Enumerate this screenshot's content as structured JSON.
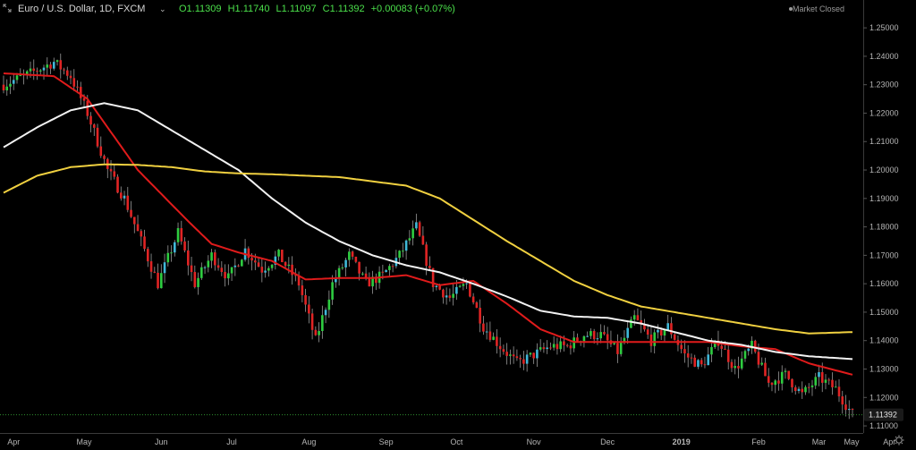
{
  "header": {
    "title": "Euro / U.S. Dollar, 1D, FXCM",
    "dropdown_icon": "chevron-down-icon",
    "ohlc": {
      "open": "O1.11309",
      "high": "H1.11740",
      "low": "L1.11097",
      "close": "C1.11392",
      "change": "+0.00083 (+0.07%)"
    },
    "market_status": "Market Closed"
  },
  "colors": {
    "background": "#000000",
    "candle_up": "#2ecc40",
    "candle_up_alt": "#3fb8d8",
    "candle_down": "#e02424",
    "ma_red": "#e01b1b",
    "ma_white": "#f2f2f2",
    "ma_yellow": "#f0d040",
    "price_label_bg": "#1a1a1a",
    "current_line": "#2f8f2f"
  },
  "chart_data": {
    "type": "line",
    "title": "Euro / U.S. Dollar, 1D, FXCM",
    "xlabel": "",
    "ylabel": "",
    "x": [
      "Apr",
      "May",
      "Jun",
      "Jul",
      "Aug",
      "Sep",
      "Oct",
      "Nov",
      "Dec",
      "2019",
      "Feb",
      "Mar",
      "Apr",
      "May"
    ],
    "y_ticks": [
      "1.25000",
      "1.24000",
      "1.23000",
      "1.22000",
      "1.21000",
      "1.20000",
      "1.19000",
      "1.18000",
      "1.17000",
      "1.16000",
      "1.15000",
      "1.14000",
      "1.13000",
      "1.12000",
      "1.11000"
    ],
    "ylim": [
      1.1075,
      1.2535
    ],
    "grid": false,
    "current_price": "1.11392",
    "ohlc_anchors": [
      [
        0,
        1.23
      ],
      [
        8,
        1.234
      ],
      [
        15,
        1.238
      ],
      [
        20,
        1.233
      ],
      [
        25,
        1.22
      ],
      [
        31,
        1.2
      ],
      [
        36,
        1.19
      ],
      [
        41,
        1.175
      ],
      [
        46,
        1.16
      ],
      [
        52,
        1.178
      ],
      [
        57,
        1.16
      ],
      [
        62,
        1.17
      ],
      [
        67,
        1.162
      ],
      [
        72,
        1.172
      ],
      [
        77,
        1.165
      ],
      [
        82,
        1.17
      ],
      [
        88,
        1.16
      ],
      [
        93,
        1.14
      ],
      [
        98,
        1.16
      ],
      [
        103,
        1.17
      ],
      [
        108,
        1.16
      ],
      [
        113,
        1.163
      ],
      [
        118,
        1.17
      ],
      [
        123,
        1.18
      ],
      [
        128,
        1.16
      ],
      [
        133,
        1.155
      ],
      [
        138,
        1.16
      ],
      [
        143,
        1.145
      ],
      [
        148,
        1.138
      ],
      [
        153,
        1.132
      ],
      [
        158,
        1.135
      ],
      [
        163,
        1.138
      ],
      [
        168,
        1.138
      ],
      [
        173,
        1.142
      ],
      [
        178,
        1.142
      ],
      [
        183,
        1.136
      ],
      [
        188,
        1.148
      ],
      [
        193,
        1.14
      ],
      [
        198,
        1.145
      ],
      [
        203,
        1.135
      ],
      [
        208,
        1.131
      ],
      [
        213,
        1.14
      ],
      [
        218,
        1.13
      ],
      [
        223,
        1.138
      ],
      [
        228,
        1.125
      ],
      [
        233,
        1.128
      ],
      [
        238,
        1.121
      ],
      [
        243,
        1.127
      ],
      [
        248,
        1.123
      ],
      [
        253,
        1.114
      ]
    ],
    "series": [
      {
        "values": [
          [
            0,
            1.234
          ],
          [
            15,
            1.233
          ],
          [
            25,
            1.225
          ],
          [
            40,
            1.2
          ],
          [
            55,
            1.182
          ],
          [
            62,
            1.174
          ],
          [
            70,
            1.171
          ],
          [
            80,
            1.168
          ],
          [
            90,
            1.1615
          ],
          [
            100,
            1.162
          ],
          [
            110,
            1.162
          ],
          [
            120,
            1.163
          ],
          [
            130,
            1.1595
          ],
          [
            140,
            1.161
          ],
          [
            150,
            1.153
          ],
          [
            160,
            1.144
          ],
          [
            170,
            1.1395
          ],
          [
            180,
            1.1395
          ],
          [
            190,
            1.1395
          ],
          [
            200,
            1.1395
          ],
          [
            210,
            1.1395
          ],
          [
            220,
            1.138
          ],
          [
            230,
            1.137
          ],
          [
            240,
            1.132
          ],
          [
            253,
            1.128
          ]
        ]
      },
      {
        "values": [
          [
            0,
            1.208
          ],
          [
            10,
            1.215
          ],
          [
            20,
            1.221
          ],
          [
            30,
            1.2235
          ],
          [
            40,
            1.221
          ],
          [
            50,
            1.214
          ],
          [
            60,
            1.207
          ],
          [
            70,
            1.2
          ],
          [
            80,
            1.19
          ],
          [
            90,
            1.1815
          ],
          [
            100,
            1.175
          ],
          [
            110,
            1.17
          ],
          [
            120,
            1.1665
          ],
          [
            130,
            1.164
          ],
          [
            140,
            1.16
          ],
          [
            150,
            1.1555
          ],
          [
            160,
            1.1505
          ],
          [
            170,
            1.1485
          ],
          [
            180,
            1.148
          ],
          [
            190,
            1.146
          ],
          [
            200,
            1.143
          ],
          [
            210,
            1.14
          ],
          [
            220,
            1.1385
          ],
          [
            230,
            1.136
          ],
          [
            240,
            1.1345
          ],
          [
            253,
            1.1335
          ]
        ]
      },
      {
        "values": [
          [
            0,
            1.192
          ],
          [
            10,
            1.198
          ],
          [
            20,
            1.201
          ],
          [
            30,
            1.202
          ],
          [
            40,
            1.2018
          ],
          [
            50,
            1.201
          ],
          [
            60,
            1.1995
          ],
          [
            70,
            1.1988
          ],
          [
            80,
            1.1985
          ],
          [
            90,
            1.198
          ],
          [
            100,
            1.1975
          ],
          [
            110,
            1.196
          ],
          [
            120,
            1.1945
          ],
          [
            130,
            1.19
          ],
          [
            140,
            1.1825
          ],
          [
            150,
            1.175
          ],
          [
            160,
            1.168
          ],
          [
            170,
            1.161
          ],
          [
            180,
            1.156
          ],
          [
            190,
            1.152
          ],
          [
            200,
            1.15
          ],
          [
            210,
            1.148
          ],
          [
            220,
            1.146
          ],
          [
            230,
            1.144
          ],
          [
            240,
            1.1425
          ],
          [
            253,
            1.143
          ]
        ]
      }
    ]
  }
}
